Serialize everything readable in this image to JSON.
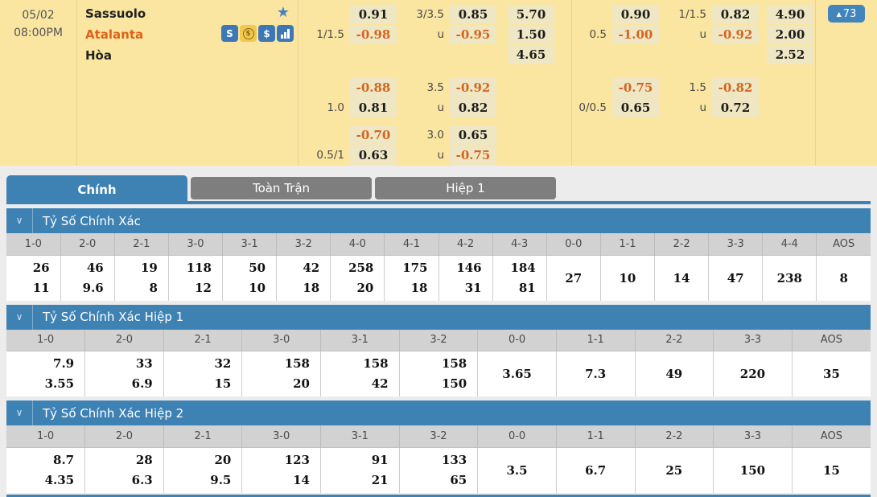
{
  "colors": {
    "accent_blue": "#3E82B4",
    "tab_gray": "#7E7E7E",
    "negative_orange": "#D4641E",
    "panel_yellow": "#FAE6A1",
    "odds_cell_bg": "#EFE7C3"
  },
  "match": {
    "date": "05/02",
    "time": "08:00PM",
    "teams": [
      {
        "name": "Sassuolo"
      },
      {
        "name": "Atalanta"
      },
      {
        "name": "Hòa"
      }
    ],
    "icons": [
      "stream-icon",
      "coin-exchange-icon",
      "dollar-icon",
      "bar-chart-icon"
    ],
    "badge": {
      "direction_glyph": "▲",
      "count": "73"
    }
  },
  "odds": {
    "left": [
      {
        "rows": [
          {
            "hdp_line": "",
            "hdp": "0.91",
            "ou_line": "3/3.5",
            "ou": "0.85",
            "x2": "5.70"
          },
          {
            "hdp_line": "1/1.5",
            "hdp": "-0.98",
            "ou_line": "u",
            "ou": "-0.95",
            "x2": "1.50"
          },
          {
            "hdp_line": "",
            "hdp": "",
            "ou_line": "",
            "ou": "",
            "x2": "4.65"
          }
        ]
      },
      {
        "rows": [
          {
            "hdp_line": "",
            "hdp": "-0.88",
            "ou_line": "3.5",
            "ou": "-0.92",
            "x2": ""
          },
          {
            "hdp_line": "1.0",
            "hdp": "0.81",
            "ou_line": "u",
            "ou": "0.82",
            "x2": ""
          }
        ]
      },
      {
        "rows": [
          {
            "hdp_line": "",
            "hdp": "-0.70",
            "ou_line": "3.0",
            "ou": "0.65",
            "x2": ""
          },
          {
            "hdp_line": "0.5/1",
            "hdp": "0.63",
            "ou_line": "u",
            "ou": "-0.75",
            "x2": ""
          }
        ]
      }
    ],
    "right": [
      {
        "rows": [
          {
            "hdp_line": "",
            "hdp": "0.90",
            "ou_line": "1/1.5",
            "ou": "0.82",
            "x2": "4.90"
          },
          {
            "hdp_line": "0.5",
            "hdp": "-1.00",
            "ou_line": "u",
            "ou": "-0.92",
            "x2": "2.00"
          },
          {
            "hdp_line": "",
            "hdp": "",
            "ou_line": "",
            "ou": "",
            "x2": "2.52"
          }
        ]
      },
      {
        "rows": [
          {
            "hdp_line": "",
            "hdp": "-0.75",
            "ou_line": "1.5",
            "ou": "-0.82",
            "x2": ""
          },
          {
            "hdp_line": "0/0.5",
            "hdp": "0.65",
            "ou_line": "u",
            "ou": "0.72",
            "x2": ""
          }
        ]
      },
      {
        "rows": []
      }
    ]
  },
  "tabs": [
    {
      "label": "Chính",
      "active": true
    },
    {
      "label": "Toàn Trận",
      "active": false
    },
    {
      "label": "Hiệp 1",
      "active": false
    }
  ],
  "sections": [
    {
      "title": "Tỷ Số Chính Xác",
      "columns": [
        "1-0",
        "2-0",
        "2-1",
        "3-0",
        "3-1",
        "3-2",
        "4-0",
        "4-1",
        "4-2",
        "4-3",
        "0-0",
        "1-1",
        "2-2",
        "3-3",
        "4-4",
        "AOS"
      ],
      "cells": [
        [
          "26",
          "11"
        ],
        [
          "46",
          "9.6"
        ],
        [
          "19",
          "8"
        ],
        [
          "118",
          "12"
        ],
        [
          "50",
          "10"
        ],
        [
          "42",
          "18"
        ],
        [
          "258",
          "20"
        ],
        [
          "175",
          "18"
        ],
        [
          "146",
          "31"
        ],
        [
          "184",
          "81"
        ],
        [
          "27"
        ],
        [
          "10"
        ],
        [
          "14"
        ],
        [
          "47"
        ],
        [
          "238"
        ],
        [
          "8"
        ]
      ]
    },
    {
      "title": "Tỷ Số Chính Xác Hiệp 1",
      "columns": [
        "1-0",
        "2-0",
        "2-1",
        "3-0",
        "3-1",
        "3-2",
        "0-0",
        "1-1",
        "2-2",
        "3-3",
        "AOS"
      ],
      "cells": [
        [
          "7.9",
          "3.55"
        ],
        [
          "33",
          "6.9"
        ],
        [
          "32",
          "15"
        ],
        [
          "158",
          "20"
        ],
        [
          "158",
          "42"
        ],
        [
          "158",
          "150"
        ],
        [
          "3.65"
        ],
        [
          "7.3"
        ],
        [
          "49"
        ],
        [
          "220"
        ],
        [
          "35"
        ]
      ]
    },
    {
      "title": "Tỷ Số Chính Xác Hiệp 2",
      "columns": [
        "1-0",
        "2-0",
        "2-1",
        "3-0",
        "3-1",
        "3-2",
        "0-0",
        "1-1",
        "2-2",
        "3-3",
        "AOS"
      ],
      "cells": [
        [
          "8.7",
          "4.35"
        ],
        [
          "28",
          "6.3"
        ],
        [
          "20",
          "9.5"
        ],
        [
          "123",
          "14"
        ],
        [
          "91",
          "21"
        ],
        [
          "133",
          "65"
        ],
        [
          "3.5"
        ],
        [
          "6.7"
        ],
        [
          "25"
        ],
        [
          "150"
        ],
        [
          "15"
        ]
      ]
    }
  ]
}
